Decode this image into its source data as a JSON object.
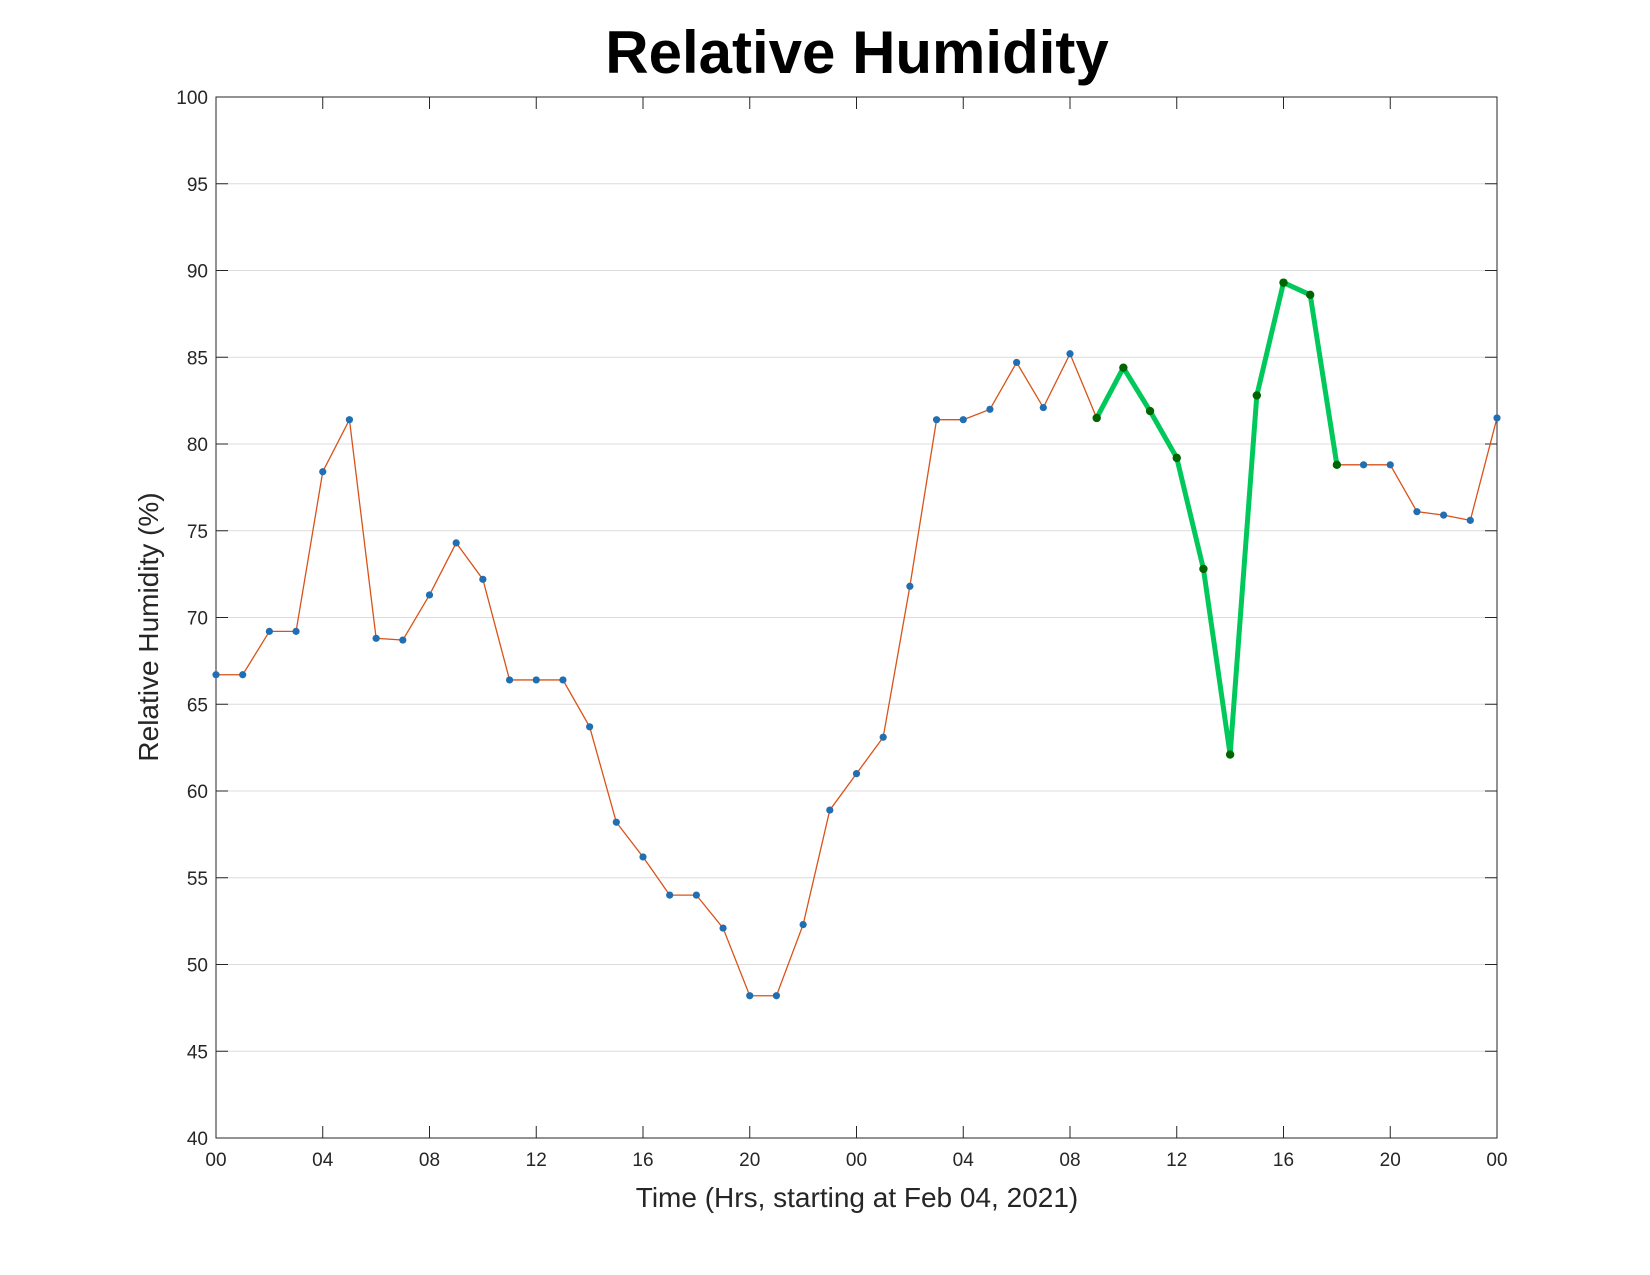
{
  "chart_data": {
    "type": "line",
    "title": "Relative Humidity",
    "xlabel": "Time (Hrs, starting at Feb 04, 2021)",
    "ylabel": "Relative Humidity (%)",
    "ylim": [
      40,
      100
    ],
    "xlim": [
      0,
      48
    ],
    "yticks": [
      40,
      45,
      50,
      55,
      60,
      65,
      70,
      75,
      80,
      85,
      90,
      95,
      100
    ],
    "xticks": [
      0,
      4,
      8,
      12,
      16,
      20,
      24,
      28,
      32,
      36,
      40,
      44,
      48
    ],
    "xtick_labels": [
      "00",
      "04",
      "08",
      "12",
      "16",
      "20",
      "00",
      "04",
      "08",
      "12",
      "16",
      "20",
      "00"
    ],
    "grid": true,
    "colors": {
      "line": "#d95319",
      "marker": "#1f6fb2",
      "highlight_line": "#00c85a",
      "highlight_marker": "#006400"
    },
    "highlight_range": [
      33,
      42
    ],
    "series": [
      {
        "x": [
          0,
          1,
          2,
          3,
          4,
          5,
          6,
          7,
          8,
          9,
          10,
          11,
          12,
          13,
          14,
          15,
          16,
          17,
          18,
          19,
          20,
          21,
          22,
          23,
          24,
          25,
          26,
          27,
          28,
          29,
          30,
          31,
          32,
          33,
          34,
          35,
          36,
          37,
          38,
          39,
          40,
          41,
          42,
          43,
          44,
          45,
          46,
          47,
          48
        ],
        "values": [
          66.7,
          66.7,
          69.2,
          69.2,
          78.4,
          81.4,
          68.8,
          68.7,
          71.3,
          74.3,
          72.2,
          66.4,
          66.4,
          66.4,
          63.7,
          58.2,
          56.2,
          54.0,
          54.0,
          52.1,
          48.2,
          48.2,
          52.3,
          58.9,
          61.0,
          63.1,
          71.8,
          81.4,
          81.4,
          82.0,
          84.7,
          82.1,
          85.2,
          81.5,
          84.4,
          81.9,
          79.2,
          72.8,
          62.1,
          82.8,
          89.3,
          88.6,
          78.8,
          78.8,
          78.8,
          76.1,
          75.9,
          75.6,
          81.5
        ]
      }
    ]
  }
}
